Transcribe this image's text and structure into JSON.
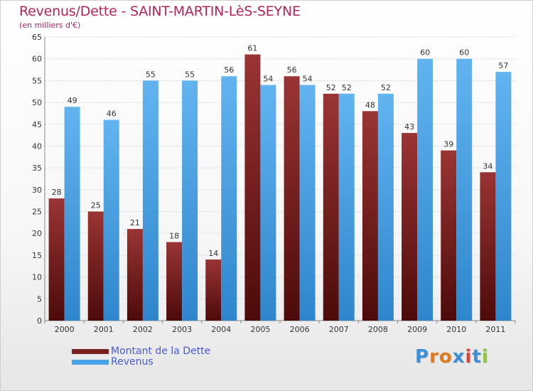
{
  "title": "Revenus/Dette - SAINT-MARTIN-LèS-SEYNE",
  "subtitle": "(en milliers d'€)",
  "logo": {
    "text": "Proxiti",
    "letter_colors": [
      "#3d8fd6",
      "#e07a1f",
      "#e07a1f",
      "#3d8fd6",
      "#d6463d",
      "#3d8fd6",
      "#8cc63f"
    ]
  },
  "colors": {
    "dette": "#7a1f1f",
    "revenus": "#4aa3e6",
    "axis_text": "#333333",
    "grid": "#d4d4d4"
  },
  "chart_data": {
    "type": "bar",
    "title": "Revenus/Dette - SAINT-MARTIN-LèS-SEYNE",
    "subtitle": "(en milliers d'€)",
    "categories": [
      "2000",
      "2001",
      "2002",
      "2003",
      "2004",
      "2005",
      "2006",
      "2007",
      "2008",
      "2009",
      "2010",
      "2011"
    ],
    "series": [
      {
        "name": "Montant de la Dette",
        "values": [
          28,
          25,
          21,
          18,
          14,
          61,
          56,
          52,
          48,
          43,
          39,
          34
        ]
      },
      {
        "name": "Revenus",
        "values": [
          49,
          46,
          55,
          55,
          56,
          54,
          54,
          52,
          52,
          60,
          60,
          57
        ]
      }
    ],
    "ylim": [
      0,
      65
    ],
    "yticks": [
      0,
      5,
      10,
      15,
      20,
      25,
      30,
      35,
      40,
      45,
      50,
      55,
      60,
      65
    ],
    "grid": true,
    "legend_position": "bottom-left",
    "data_labels": true
  }
}
